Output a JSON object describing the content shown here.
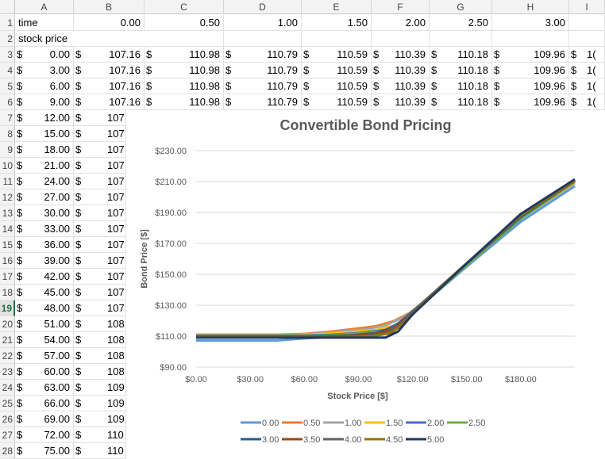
{
  "columns": [
    "A",
    "B",
    "C",
    "D",
    "E",
    "F",
    "G",
    "H",
    "I"
  ],
  "rows": {
    "r1": {
      "num": "1",
      "label": "time",
      "times": [
        "0.00",
        "0.50",
        "1.00",
        "1.50",
        "2.00",
        "2.50",
        "3.00"
      ]
    },
    "r2": {
      "num": "2",
      "label": "stock price"
    },
    "r3": {
      "num": "3",
      "a": "0.00",
      "vals": [
        "107.16",
        "110.98",
        "110.79",
        "110.59",
        "110.39",
        "110.18",
        "109.96"
      ],
      "i": "1("
    },
    "r4": {
      "num": "4",
      "a": "3.00",
      "vals": [
        "107.16",
        "110.98",
        "110.79",
        "110.59",
        "110.39",
        "110.18",
        "109.96"
      ],
      "i": "1("
    },
    "r5": {
      "num": "5",
      "a": "6.00",
      "vals": [
        "107.16",
        "110.98",
        "110.79",
        "110.59",
        "110.39",
        "110.18",
        "109.96"
      ],
      "i": "1("
    },
    "r6": {
      "num": "6",
      "a": "9.00",
      "vals": [
        "107.16",
        "110.98",
        "110.79",
        "110.59",
        "110.39",
        "110.18",
        "109.96"
      ],
      "i": "1("
    }
  },
  "lower_rows": [
    {
      "num": "7",
      "a": "12.00",
      "b": "107"
    },
    {
      "num": "8",
      "a": "15.00",
      "b": "107"
    },
    {
      "num": "9",
      "a": "18.00",
      "b": "107"
    },
    {
      "num": "10",
      "a": "21.00",
      "b": "107"
    },
    {
      "num": "11",
      "a": "24.00",
      "b": "107"
    },
    {
      "num": "12",
      "a": "27.00",
      "b": "107"
    },
    {
      "num": "13",
      "a": "30.00",
      "b": "107"
    },
    {
      "num": "14",
      "a": "33.00",
      "b": "107"
    },
    {
      "num": "15",
      "a": "36.00",
      "b": "107"
    },
    {
      "num": "16",
      "a": "39.00",
      "b": "107"
    },
    {
      "num": "17",
      "a": "42.00",
      "b": "107"
    },
    {
      "num": "18",
      "a": "45.00",
      "b": "107"
    },
    {
      "num": "19",
      "a": "48.00",
      "b": "107"
    },
    {
      "num": "20",
      "a": "51.00",
      "b": "108"
    },
    {
      "num": "21",
      "a": "54.00",
      "b": "108"
    },
    {
      "num": "22",
      "a": "57.00",
      "b": "108"
    },
    {
      "num": "23",
      "a": "60.00",
      "b": "108"
    },
    {
      "num": "24",
      "a": "63.00",
      "b": "109"
    },
    {
      "num": "25",
      "a": "66.00",
      "b": "109"
    },
    {
      "num": "26",
      "a": "69.00",
      "b": "109"
    },
    {
      "num": "27",
      "a": "72.00",
      "b": "110"
    },
    {
      "num": "28",
      "a": "75.00",
      "b": "110"
    }
  ],
  "currency_symbol": "$",
  "active_row": "19",
  "chart_data": {
    "type": "line",
    "title": "Convertible Bond Pricing",
    "xlabel": "Stock Price [$]",
    "ylabel": "Bond Price [$]",
    "xlim": [
      0,
      210
    ],
    "ylim": [
      90,
      230
    ],
    "x_ticks": [
      "$0.00",
      "$30.00",
      "$60.00",
      "$90.00",
      "$120.00",
      "$150.00",
      "$180.00"
    ],
    "y_ticks": [
      "$90.00",
      "$110.00",
      "$130.00",
      "$150.00",
      "$170.00",
      "$190.00",
      "$210.00",
      "$230.00"
    ],
    "x_tick_values": [
      0,
      30,
      60,
      90,
      120,
      150,
      180
    ],
    "y_tick_values": [
      90,
      110,
      130,
      150,
      170,
      190,
      210,
      230
    ],
    "legend": "bottom",
    "series": [
      {
        "name": "0.00",
        "color": "#5b9bd5",
        "points": [
          [
            0,
            107.2
          ],
          [
            45,
            107.2
          ],
          [
            60,
            108.5
          ],
          [
            75,
            109.5
          ],
          [
            90,
            110.5
          ],
          [
            100,
            112
          ],
          [
            110,
            114
          ],
          [
            115,
            118
          ],
          [
            125,
            130
          ],
          [
            150,
            155
          ],
          [
            180,
            184
          ],
          [
            210,
            207
          ]
        ]
      },
      {
        "name": "0.50",
        "color": "#ed7d31",
        "points": [
          [
            0,
            111
          ],
          [
            45,
            111
          ],
          [
            60,
            111.5
          ],
          [
            75,
            113
          ],
          [
            90,
            115
          ],
          [
            100,
            116.5
          ],
          [
            110,
            120
          ],
          [
            120,
            126
          ],
          [
            130,
            136
          ],
          [
            150,
            156
          ],
          [
            180,
            186
          ],
          [
            210,
            209
          ]
        ]
      },
      {
        "name": "1.00",
        "color": "#a5a5a5",
        "points": [
          [
            0,
            110.8
          ],
          [
            50,
            110.8
          ],
          [
            65,
            111.5
          ],
          [
            80,
            113
          ],
          [
            95,
            114.5
          ],
          [
            105,
            117
          ],
          [
            115,
            122
          ],
          [
            125,
            131
          ],
          [
            150,
            156
          ],
          [
            180,
            186
          ],
          [
            210,
            209
          ]
        ]
      },
      {
        "name": "1.50",
        "color": "#ffc000",
        "points": [
          [
            0,
            110.6
          ],
          [
            55,
            110.6
          ],
          [
            70,
            111.5
          ],
          [
            85,
            112.5
          ],
          [
            100,
            114
          ],
          [
            110,
            117
          ],
          [
            120,
            124
          ],
          [
            130,
            135
          ],
          [
            150,
            156
          ],
          [
            180,
            186
          ],
          [
            210,
            209.5
          ]
        ]
      },
      {
        "name": "2.00",
        "color": "#4472c4",
        "points": [
          [
            0,
            110.4
          ],
          [
            60,
            110.4
          ],
          [
            75,
            111
          ],
          [
            90,
            112
          ],
          [
            105,
            114
          ],
          [
            115,
            120
          ],
          [
            125,
            130
          ],
          [
            150,
            156
          ],
          [
            180,
            186
          ],
          [
            210,
            210
          ]
        ]
      },
      {
        "name": "2.50",
        "color": "#70ad47",
        "points": [
          [
            0,
            110.2
          ],
          [
            65,
            110.2
          ],
          [
            80,
            111
          ],
          [
            95,
            112
          ],
          [
            108,
            114
          ],
          [
            118,
            122
          ],
          [
            128,
            133
          ],
          [
            150,
            156
          ],
          [
            180,
            186
          ],
          [
            210,
            210
          ]
        ]
      },
      {
        "name": "3.00",
        "color": "#255e91",
        "points": [
          [
            0,
            110
          ],
          [
            70,
            110
          ],
          [
            85,
            110.5
          ],
          [
            100,
            112
          ],
          [
            110,
            116
          ],
          [
            120,
            126
          ],
          [
            130,
            136
          ],
          [
            150,
            157
          ],
          [
            180,
            187
          ],
          [
            210,
            210.5
          ]
        ]
      },
      {
        "name": "3.50",
        "color": "#9e480e",
        "points": [
          [
            0,
            109.7
          ],
          [
            75,
            109.7
          ],
          [
            90,
            110.5
          ],
          [
            103,
            112
          ],
          [
            112,
            117
          ],
          [
            122,
            128
          ],
          [
            150,
            157
          ],
          [
            180,
            188
          ],
          [
            210,
            210.5
          ]
        ]
      },
      {
        "name": "4.00",
        "color": "#636363",
        "points": [
          [
            0,
            109.5
          ],
          [
            80,
            109.5
          ],
          [
            92,
            110
          ],
          [
            105,
            111.5
          ],
          [
            113,
            117
          ],
          [
            122,
            128
          ],
          [
            150,
            157
          ],
          [
            180,
            188
          ],
          [
            210,
            211
          ]
        ]
      },
      {
        "name": "4.50",
        "color": "#997300",
        "points": [
          [
            0,
            109.3
          ],
          [
            85,
            109.3
          ],
          [
            98,
            110
          ],
          [
            108,
            112
          ],
          [
            115,
            118
          ],
          [
            125,
            130
          ],
          [
            150,
            157
          ],
          [
            180,
            188
          ],
          [
            210,
            211
          ]
        ]
      },
      {
        "name": "5.00",
        "color": "#203864",
        "points": [
          [
            0,
            109
          ],
          [
            105,
            109
          ],
          [
            112,
            113
          ],
          [
            120,
            124
          ],
          [
            130,
            135
          ],
          [
            150,
            157
          ],
          [
            180,
            189
          ],
          [
            210,
            211.5
          ]
        ]
      }
    ]
  }
}
